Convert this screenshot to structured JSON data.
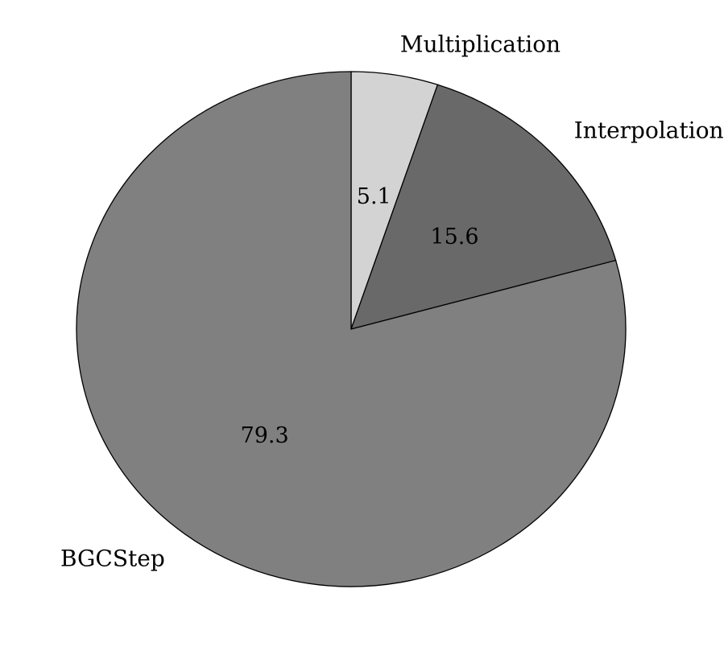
{
  "chart_data": {
    "type": "pie",
    "title": "",
    "categories": [
      "Multiplication",
      "Interpolation",
      "BGCStep"
    ],
    "values": [
      5.1,
      15.6,
      79.3
    ],
    "value_labels": [
      "5.1",
      "15.6",
      "79.3"
    ],
    "colors": [
      "#d3d3d3",
      "#696969",
      "#808080"
    ],
    "start_angle": "top (12 o'clock)",
    "direction": "clockwise",
    "legend": "none (slice labels outside pie)"
  }
}
